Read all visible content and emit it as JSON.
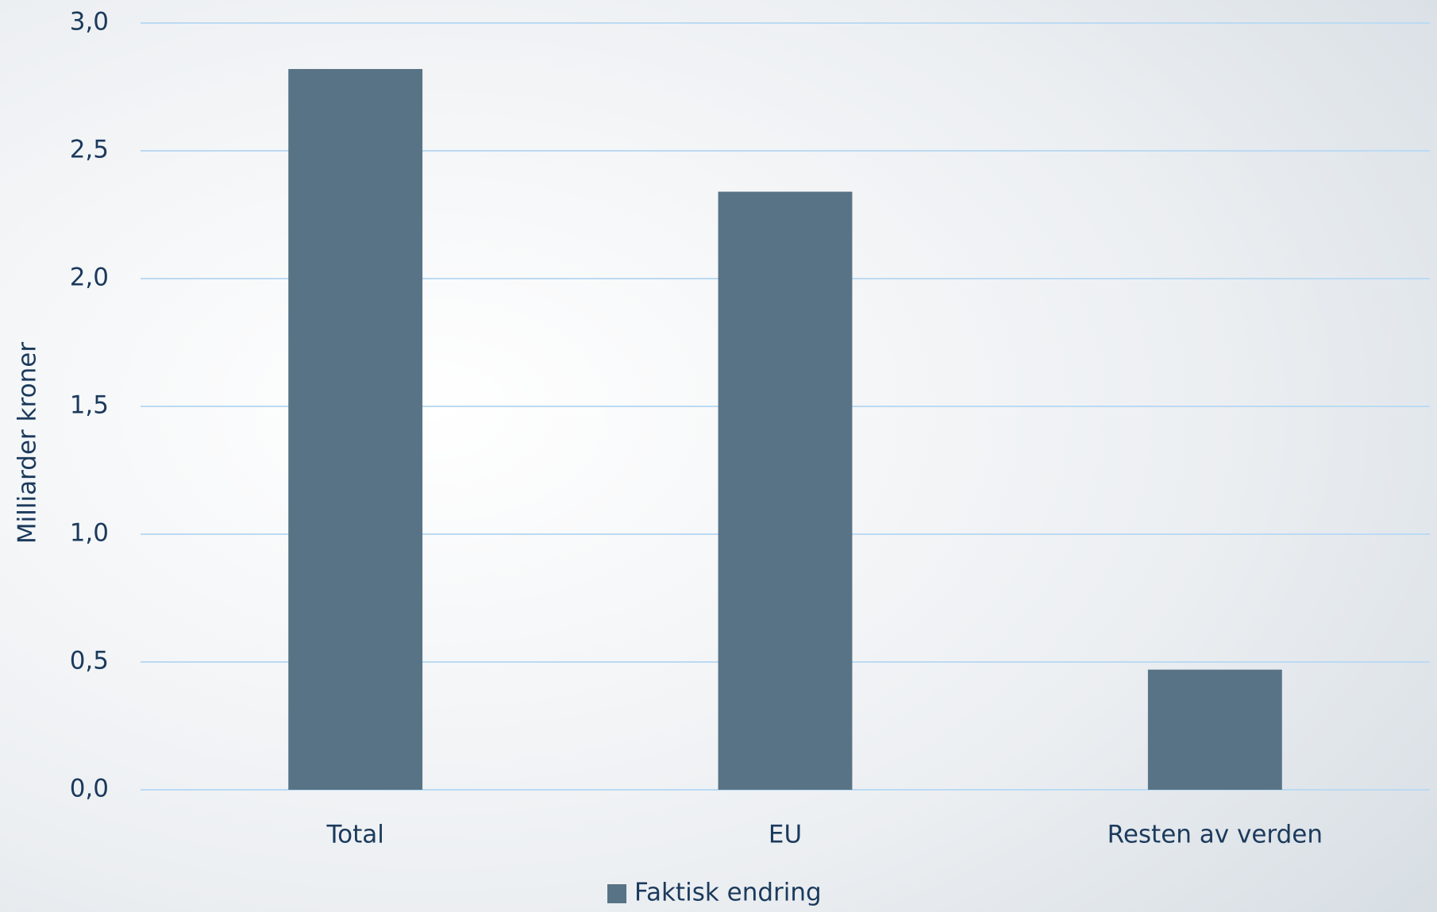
{
  "chart_data": {
    "type": "bar",
    "y_label": "Milliarder kroner",
    "categories": [
      "Total",
      "EU",
      "Resten av verden"
    ],
    "series": [
      {
        "name": "Faktisk endring",
        "color": "#587385",
        "values": [
          2.82,
          2.34,
          0.47
        ]
      }
    ],
    "ylim": [
      0,
      3
    ],
    "yticks": [
      {
        "value": 0,
        "label": "0,0"
      },
      {
        "value": 0.5,
        "label": "0,5"
      },
      {
        "value": 1,
        "label": "1,0"
      },
      {
        "value": 1.5,
        "label": "1,5"
      },
      {
        "value": 2,
        "label": "2,0"
      },
      {
        "value": 2.5,
        "label": "2,5"
      },
      {
        "value": 3,
        "label": "3,0"
      }
    ],
    "grid": true,
    "legend": "bottom"
  }
}
